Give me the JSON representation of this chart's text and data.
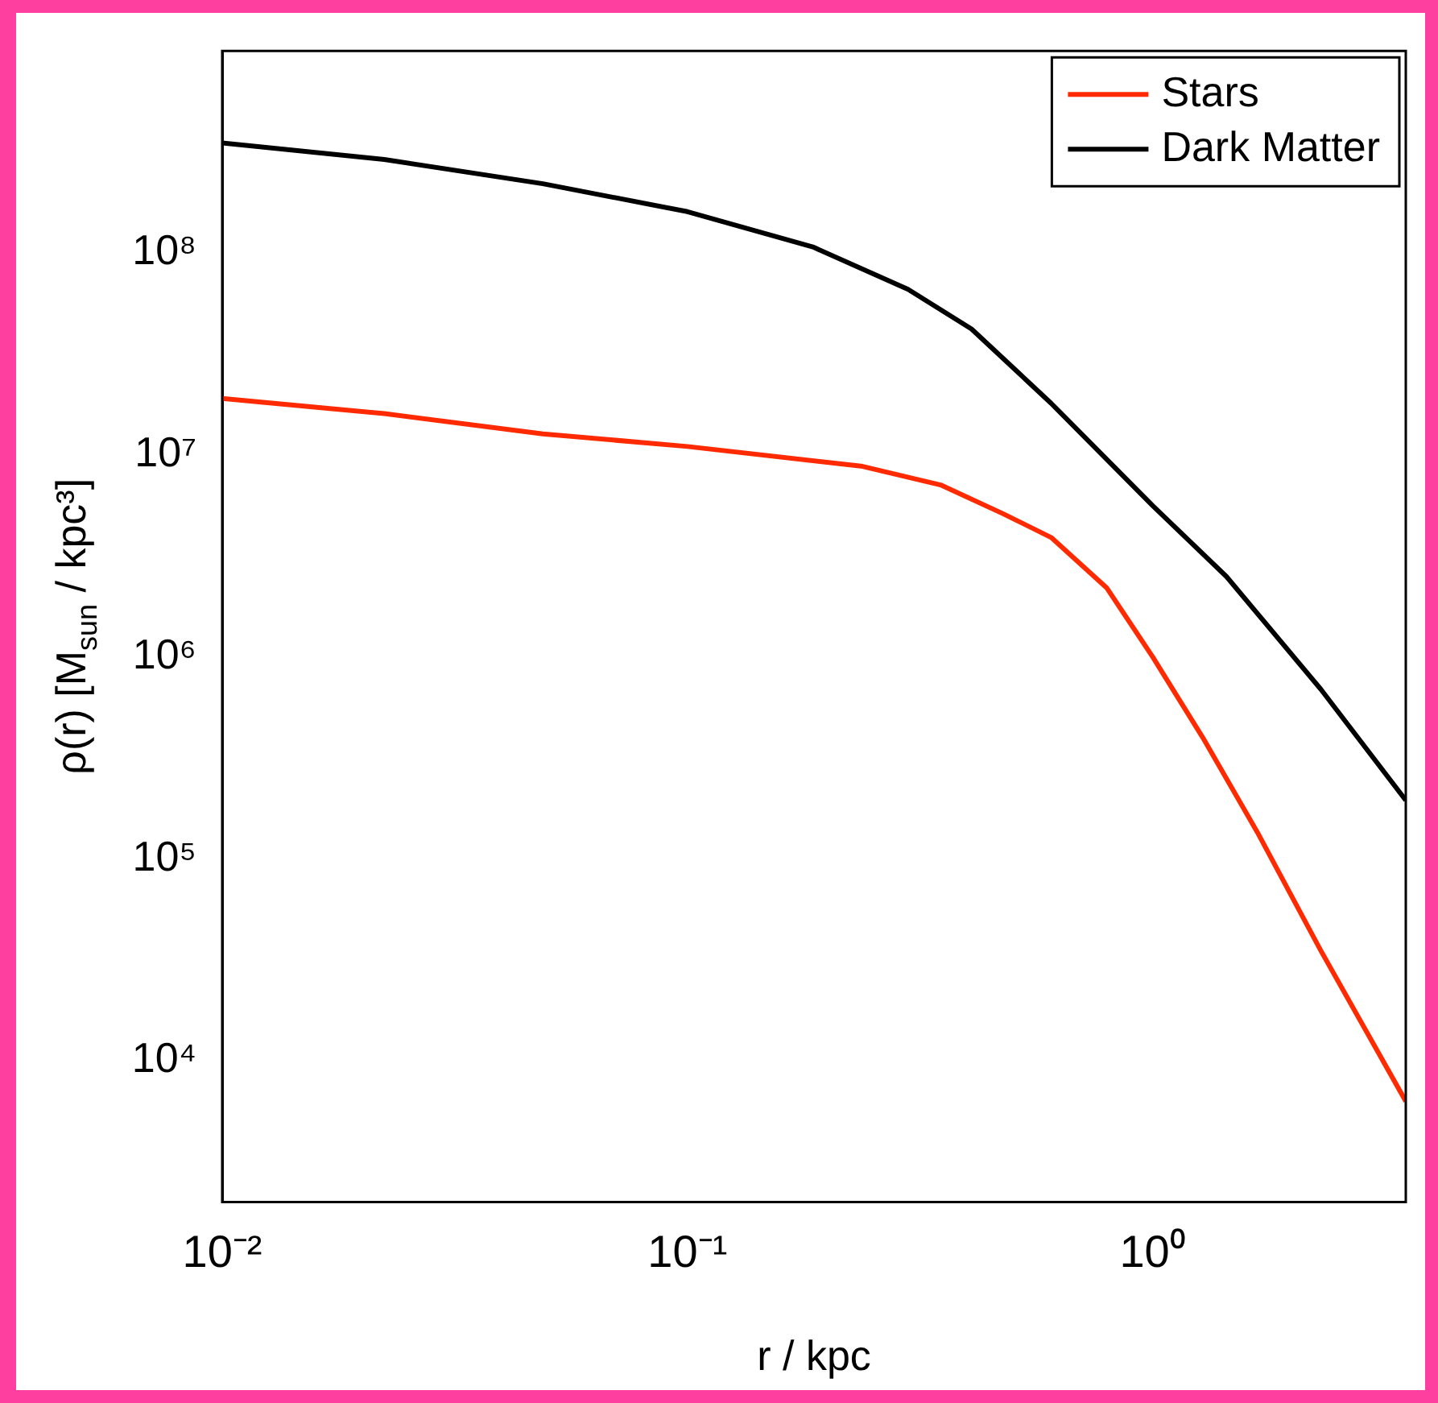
{
  "chart_data": {
    "type": "line",
    "xlabel": "r / kpc",
    "ylabel": "ρ(r) [M$_{sun}$ / kpc³]",
    "log": "xy",
    "xlim": [
      0.01,
      3.5
    ],
    "ylim": [
      2000,
      1000000000
    ],
    "xticks": [
      {
        "value": 0.01,
        "label": "10⁻²"
      },
      {
        "value": 0.1,
        "label": "10⁻¹"
      },
      {
        "value": 1,
        "label": "10⁰"
      }
    ],
    "yticks": [
      {
        "value": 10000,
        "label": "10⁴"
      },
      {
        "value": 100000,
        "label": "10⁵"
      },
      {
        "value": 1000000,
        "label": "10⁶"
      },
      {
        "value": 10000000,
        "label": "10⁷"
      },
      {
        "value": 100000000,
        "label": "10⁸"
      }
    ],
    "grid": false,
    "legend": "top right",
    "marker": "none",
    "line_style": "solid",
    "series": [
      {
        "name": "Stars",
        "color": "#ff2a00",
        "x": [
          0.01,
          0.0223,
          0.0489,
          0.1,
          0.236,
          0.35,
          0.478,
          0.605,
          0.796,
          1,
          1.28,
          1.68,
          2.3,
          3.5
        ],
        "values": [
          19000000,
          16000000,
          12700000,
          11000000,
          8800000,
          7100000,
          5100000,
          3900000,
          2200000,
          1000000,
          400000,
          135000,
          35000,
          6300
        ]
      },
      {
        "name": "Dark Matter",
        "color": "#000000",
        "x": [
          0.01,
          0.0223,
          0.0489,
          0.1,
          0.186,
          0.298,
          0.408,
          0.605,
          1,
          1.44,
          2.3,
          3.5
        ],
        "values": [
          350000000,
          290000000,
          220000000,
          160000000,
          107000000,
          66000000,
          42000000,
          18000000,
          5600000,
          2500000,
          690000,
          195000
        ]
      }
    ]
  }
}
